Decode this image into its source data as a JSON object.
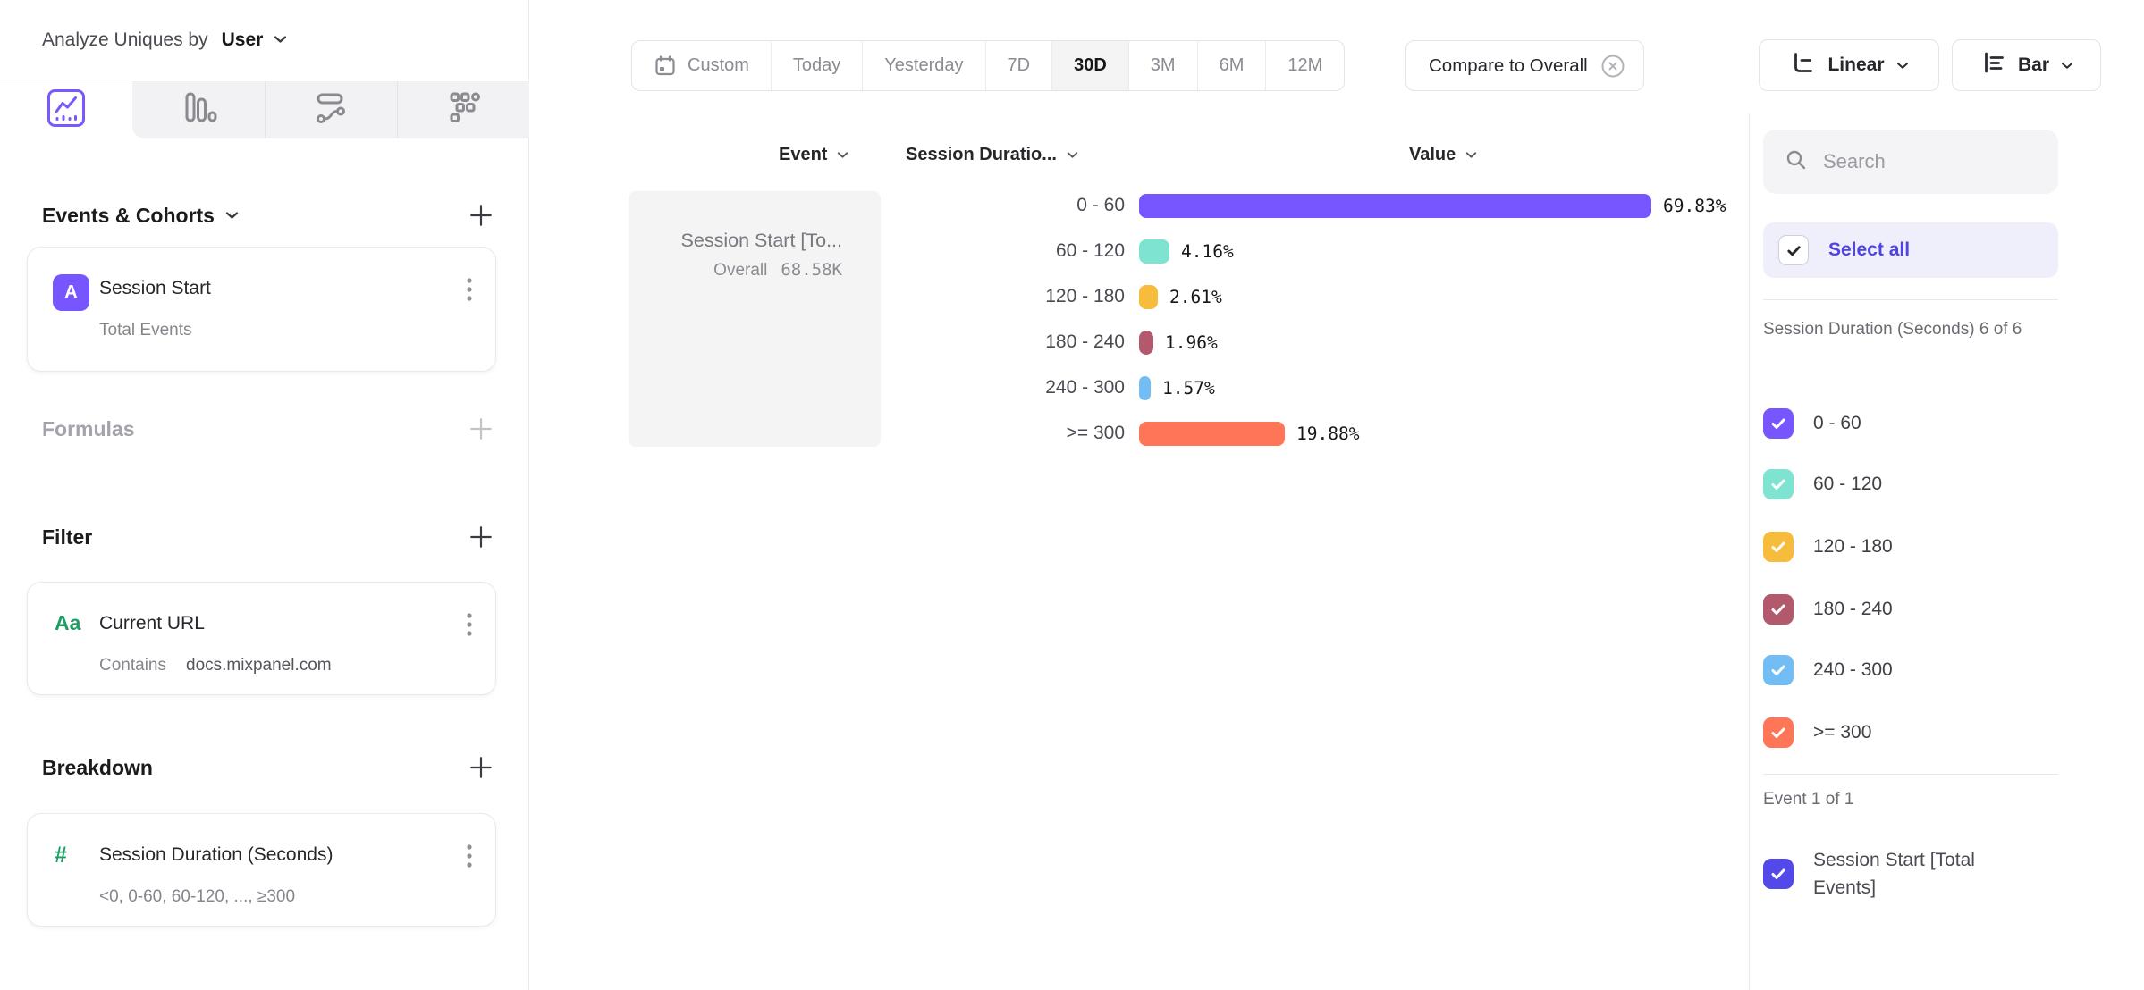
{
  "header": {
    "analyze_label": "Analyze Uniques by",
    "analyze_value": "User"
  },
  "tabs": {
    "selected": "insights-chart",
    "icons": [
      "insights-chart-icon",
      "bar-chart-icon",
      "flow-chart-icon",
      "metrics-grid-icon"
    ]
  },
  "left_panel": {
    "events": {
      "title": "Events & Cohorts",
      "card": {
        "badge": "A",
        "title": "Session Start",
        "subtitle": "Total Events"
      }
    },
    "formulas": {
      "title": "Formulas"
    },
    "filter": {
      "title": "Filter",
      "card": {
        "icon_label": "Aa",
        "title": "Current URL",
        "operator": "Contains",
        "value": "docs.mixpanel.com"
      }
    },
    "breakdown": {
      "title": "Breakdown",
      "card": {
        "icon_label": "#",
        "title": "Session Duration (Seconds)",
        "subtitle": "<0, 0-60, 60-120, ..., ≥300"
      }
    }
  },
  "toolbar": {
    "date_ranges": [
      "Custom",
      "Today",
      "Yesterday",
      "7D",
      "30D",
      "3M",
      "6M",
      "12M"
    ],
    "selected_range": "30D",
    "compare_pill": "Compare to Overall",
    "scale_button": "Linear",
    "chart_type_button": "Bar"
  },
  "table": {
    "columns": [
      "Event",
      "Session Duratio...",
      "Value"
    ],
    "event_cell": {
      "title": "Session Start [To...",
      "overall_label": "Overall",
      "overall_value": "68.58K"
    }
  },
  "chart_data": {
    "type": "bar",
    "orientation": "horizontal",
    "series_name": "Session Start [Total Events]",
    "overall_value": "68.58K",
    "categories": [
      "0 - 60",
      "60 - 120",
      "120 - 180",
      "180 - 240",
      "240 - 300",
      ">= 300"
    ],
    "values": [
      69.83,
      4.16,
      2.61,
      1.96,
      1.57,
      19.88
    ],
    "value_labels": [
      "69.83%",
      "4.16%",
      "2.61%",
      "1.96%",
      "1.57%",
      "19.88%"
    ],
    "colors": [
      "#7856FF",
      "#7EE3D0",
      "#F8BC3C",
      "#B2596E",
      "#72BEF4",
      "#FF7557"
    ],
    "unit": "%",
    "xlim": [
      0,
      72
    ],
    "grid": false,
    "legend_position": "right-sidebar"
  },
  "sidebar": {
    "search_placeholder": "Search",
    "select_all_label": "Select all",
    "accent_color": "#4F44E0",
    "group1_header": "Session Duration (Seconds) 6 of 6",
    "duration_items": [
      {
        "label": "0 - 60",
        "color": "#7856FF",
        "checked": true
      },
      {
        "label": "60 - 120",
        "color": "#7EE3D0",
        "checked": true
      },
      {
        "label": "120 - 180",
        "color": "#F8BC3C",
        "checked": true
      },
      {
        "label": "180 - 240",
        "color": "#B2596E",
        "checked": true
      },
      {
        "label": "240 - 300",
        "color": "#72BEF4",
        "checked": true
      },
      {
        "label": ">= 300",
        "color": "#FF7557",
        "checked": true
      }
    ],
    "group2_header": "Event 1 of 1",
    "event_item": {
      "label": "Session Start [Total Events]",
      "color": "#5349E8",
      "checked": true
    }
  }
}
